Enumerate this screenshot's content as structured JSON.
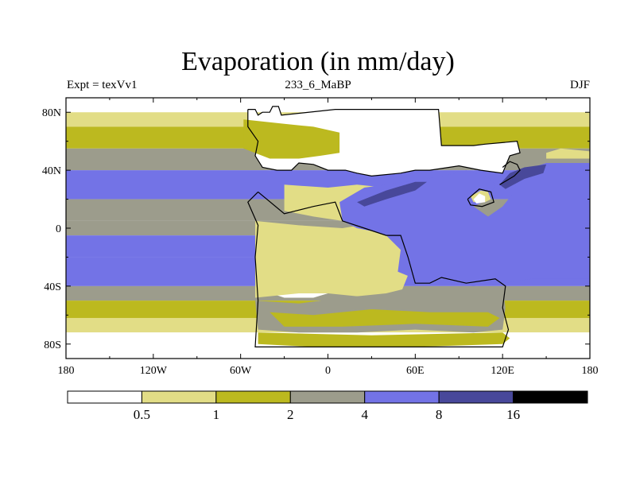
{
  "chart_data": {
    "type": "heatmap",
    "title": "Evaporation (in mm/day)",
    "left_label": "Expt = texVv1",
    "center_label": "233_6_MaBP",
    "right_label": "DJF",
    "x_ticks": [
      {
        "value": -180,
        "label": "180"
      },
      {
        "value": -120,
        "label": "120W"
      },
      {
        "value": -60,
        "label": "60W"
      },
      {
        "value": 0,
        "label": "0"
      },
      {
        "value": 60,
        "label": "60E"
      },
      {
        "value": 120,
        "label": "120E"
      },
      {
        "value": 180,
        "label": "180"
      }
    ],
    "y_ticks": [
      {
        "value": 80,
        "label": "80N"
      },
      {
        "value": 40,
        "label": "40N"
      },
      {
        "value": 0,
        "label": "0"
      },
      {
        "value": -40,
        "label": "40S"
      },
      {
        "value": -80,
        "label": "80S"
      }
    ],
    "xlim": [
      -180,
      180
    ],
    "ylim": [
      -90,
      90
    ],
    "colorbar": {
      "colors": [
        "#ffffff",
        "#e2dd86",
        "#bcb91f",
        "#9c9c8c",
        "#7373e6",
        "#48489a",
        "#000000"
      ],
      "levels": [
        {
          "value": 0.5,
          "label": "0.5"
        },
        {
          "value": 1,
          "label": "1"
        },
        {
          "value": 2,
          "label": "2"
        },
        {
          "value": 4,
          "label": "4"
        },
        {
          "value": 8,
          "label": "8"
        },
        {
          "value": 16,
          "label": "16"
        }
      ]
    },
    "bands": [
      {
        "name": "lat-80-90",
        "lat": [
          80,
          90
        ],
        "level": 0
      },
      {
        "name": "lat-70-80",
        "lat": [
          70,
          80
        ],
        "level": 1
      },
      {
        "name": "lat-55-70",
        "lat": [
          55,
          70
        ],
        "level": 2
      },
      {
        "name": "lat-40-55",
        "lat": [
          40,
          55
        ],
        "level": 3
      },
      {
        "name": "lat-20-40",
        "lat": [
          20,
          40
        ],
        "level": 4
      },
      {
        "name": "lat-5-20",
        "lat": [
          5,
          20
        ],
        "level": 3
      },
      {
        "name": "lat-m5-5",
        "lat": [
          -5,
          5
        ],
        "level": 3
      },
      {
        "name": "lat-m20-m5",
        "lat": [
          -20,
          -5
        ],
        "level": 4
      },
      {
        "name": "lat-m40-m20",
        "lat": [
          -40,
          -20
        ],
        "level": 4
      },
      {
        "name": "lat-m50-m40",
        "lat": [
          -50,
          -40
        ],
        "level": 3
      },
      {
        "name": "lat-m62-m50",
        "lat": [
          -62,
          -50
        ],
        "level": 2
      },
      {
        "name": "lat-m72-m62",
        "lat": [
          -72,
          -62
        ],
        "level": 1
      },
      {
        "name": "lat-m90-m72",
        "lat": [
          -90,
          -72
        ],
        "level": 0
      }
    ],
    "regions": [
      {
        "name": "north-landmass",
        "level": 0,
        "points": [
          [
            -55,
            82
          ],
          [
            -50,
            82
          ],
          [
            -48,
            78
          ],
          [
            -45,
            80
          ],
          [
            -40,
            80
          ],
          [
            -38,
            84
          ],
          [
            -34,
            84
          ],
          [
            -32,
            78
          ],
          [
            5,
            82
          ],
          [
            76,
            82
          ],
          [
            78,
            57
          ],
          [
            90,
            57
          ],
          [
            100,
            57
          ],
          [
            108,
            58
          ],
          [
            130,
            60
          ],
          [
            132,
            52
          ],
          [
            125,
            50
          ],
          [
            120,
            38
          ],
          [
            105,
            40
          ],
          [
            90,
            43
          ],
          [
            70,
            40
          ],
          [
            60,
            40
          ],
          [
            50,
            38
          ],
          [
            30,
            36
          ],
          [
            20,
            38
          ],
          [
            12,
            40
          ],
          [
            0,
            40
          ],
          [
            -10,
            44
          ],
          [
            -20,
            45
          ],
          [
            -25,
            40
          ],
          [
            -35,
            40
          ],
          [
            -45,
            42
          ],
          [
            -50,
            50
          ],
          [
            -48,
            60
          ],
          [
            -55,
            70
          ]
        ]
      },
      {
        "name": "north-band-overlay",
        "level": 2,
        "points": [
          [
            -58,
            75
          ],
          [
            -30,
            72
          ],
          [
            -10,
            70
          ],
          [
            8,
            66
          ],
          [
            8,
            52
          ],
          [
            -5,
            50
          ],
          [
            -20,
            48
          ],
          [
            -40,
            48
          ],
          [
            -58,
            55
          ]
        ]
      },
      {
        "name": "tethys-coast",
        "level": 1,
        "points": [
          [
            -30,
            30
          ],
          [
            0,
            28
          ],
          [
            20,
            30
          ],
          [
            40,
            28
          ],
          [
            50,
            25
          ],
          [
            50,
            10
          ],
          [
            40,
            8
          ],
          [
            30,
            5
          ],
          [
            10,
            5
          ],
          [
            -10,
            8
          ],
          [
            -30,
            12
          ]
        ]
      },
      {
        "name": "africa-south-land",
        "level": 0,
        "points": [
          [
            -48,
            -2
          ],
          [
            -30,
            -10
          ],
          [
            -10,
            -12
          ],
          [
            0,
            -8
          ],
          [
            10,
            -20
          ],
          [
            20,
            -30
          ],
          [
            10,
            -42
          ],
          [
            -10,
            -48
          ],
          [
            -30,
            -48
          ],
          [
            -48,
            -42
          ],
          [
            -50,
            -20
          ]
        ]
      },
      {
        "name": "south-land-pale",
        "level": 1,
        "points": [
          [
            -50,
            5
          ],
          [
            -20,
            2
          ],
          [
            10,
            0
          ],
          [
            40,
            5
          ],
          [
            50,
            -5
          ],
          [
            56,
            -30
          ],
          [
            50,
            -45
          ],
          [
            30,
            -48
          ],
          [
            0,
            -45
          ],
          [
            -20,
            -45
          ],
          [
            -50,
            -48
          ],
          [
            -50,
            -20
          ]
        ]
      },
      {
        "name": "south-gondwana",
        "level": 3,
        "points": [
          [
            -50,
            -50
          ],
          [
            -20,
            -52
          ],
          [
            10,
            -48
          ],
          [
            40,
            -45
          ],
          [
            60,
            -40
          ],
          [
            80,
            -45
          ],
          [
            120,
            -40
          ],
          [
            122,
            -55
          ],
          [
            120,
            -70
          ],
          [
            100,
            -72
          ],
          [
            60,
            -70
          ],
          [
            20,
            -72
          ],
          [
            -20,
            -72
          ],
          [
            -48,
            -70
          ]
        ]
      },
      {
        "name": "south-gondwana-mix",
        "level": 2,
        "points": [
          [
            -40,
            -58
          ],
          [
            -10,
            -60
          ],
          [
            30,
            -56
          ],
          [
            70,
            -58
          ],
          [
            110,
            -58
          ],
          [
            118,
            -62
          ],
          [
            110,
            -68
          ],
          [
            60,
            -66
          ],
          [
            10,
            -68
          ],
          [
            -30,
            -68
          ]
        ]
      },
      {
        "name": "south-antarctic",
        "level": 2,
        "points": [
          [
            -48,
            -72
          ],
          [
            30,
            -74
          ],
          [
            120,
            -72
          ],
          [
            125,
            -76
          ],
          [
            120,
            -80
          ],
          [
            60,
            -82
          ],
          [
            -10,
            -82
          ],
          [
            -48,
            -80
          ]
        ]
      },
      {
        "name": "tethys-ocean",
        "level": 4,
        "points": [
          [
            8,
            18
          ],
          [
            25,
            28
          ],
          [
            40,
            30
          ],
          [
            60,
            33
          ],
          [
            80,
            36
          ],
          [
            95,
            40
          ],
          [
            110,
            35
          ],
          [
            115,
            30
          ],
          [
            110,
            20
          ],
          [
            100,
            15
          ],
          [
            110,
            8
          ],
          [
            120,
            15
          ],
          [
            128,
            25
          ],
          [
            130,
            35
          ],
          [
            135,
            40
          ],
          [
            150,
            45
          ],
          [
            180,
            45
          ],
          [
            180,
            -35
          ],
          [
            140,
            -35
          ],
          [
            120,
            -38
          ],
          [
            100,
            -40
          ],
          [
            80,
            -38
          ],
          [
            60,
            -35
          ],
          [
            48,
            -30
          ],
          [
            50,
            -15
          ],
          [
            40,
            -5
          ],
          [
            30,
            -2
          ],
          [
            20,
            0
          ],
          [
            10,
            5
          ]
        ]
      },
      {
        "name": "tethys-dark-west",
        "level": 5,
        "points": [
          [
            20,
            18
          ],
          [
            40,
            26
          ],
          [
            60,
            32
          ],
          [
            68,
            32
          ],
          [
            60,
            26
          ],
          [
            40,
            20
          ],
          [
            25,
            15
          ]
        ]
      },
      {
        "name": "tethys-dark-east",
        "level": 5,
        "points": [
          [
            118,
            30
          ],
          [
            125,
            38
          ],
          [
            135,
            42
          ],
          [
            150,
            44
          ],
          [
            148,
            38
          ],
          [
            135,
            34
          ],
          [
            122,
            27
          ]
        ]
      },
      {
        "name": "east-island",
        "level": 1,
        "points": [
          [
            98,
            22
          ],
          [
            105,
            26
          ],
          [
            110,
            25
          ],
          [
            112,
            20
          ],
          [
            108,
            18
          ],
          [
            100,
            18
          ]
        ]
      },
      {
        "name": "east-island-white",
        "level": 0,
        "points": [
          [
            100,
            20
          ],
          [
            104,
            24
          ],
          [
            108,
            22
          ],
          [
            108,
            18
          ],
          [
            102,
            17
          ]
        ]
      },
      {
        "name": "east-coast-pale",
        "level": 1,
        "points": [
          [
            150,
            48
          ],
          [
            180,
            48
          ],
          [
            180,
            53
          ],
          [
            160,
            55
          ],
          [
            150,
            52
          ]
        ]
      }
    ],
    "outlines": [
      {
        "name": "north-coastline",
        "points": [
          [
            -55,
            82
          ],
          [
            -50,
            82
          ],
          [
            -48,
            78
          ],
          [
            -45,
            80
          ],
          [
            -40,
            80
          ],
          [
            -38,
            84
          ],
          [
            -34,
            84
          ],
          [
            -32,
            78
          ],
          [
            5,
            82
          ],
          [
            76,
            82
          ],
          [
            78,
            57
          ],
          [
            90,
            57
          ],
          [
            100,
            57
          ],
          [
            108,
            58
          ],
          [
            130,
            60
          ],
          [
            132,
            52
          ],
          [
            125,
            50
          ],
          [
            120,
            38
          ],
          [
            105,
            40
          ],
          [
            90,
            43
          ],
          [
            70,
            40
          ],
          [
            60,
            40
          ],
          [
            50,
            38
          ],
          [
            30,
            36
          ],
          [
            20,
            38
          ],
          [
            12,
            40
          ],
          [
            0,
            40
          ],
          [
            -10,
            44
          ],
          [
            -20,
            45
          ],
          [
            -25,
            40
          ],
          [
            -35,
            40
          ],
          [
            -45,
            42
          ],
          [
            -50,
            50
          ],
          [
            -48,
            60
          ],
          [
            -55,
            70
          ],
          [
            -55,
            82
          ]
        ]
      },
      {
        "name": "south-coastline",
        "points": [
          [
            -48,
            25
          ],
          [
            -55,
            18
          ],
          [
            -48,
            2
          ],
          [
            -50,
            -20
          ],
          [
            -48,
            -50
          ],
          [
            -50,
            -82
          ],
          [
            120,
            -82
          ],
          [
            124,
            -70
          ],
          [
            120,
            -55
          ],
          [
            122,
            -40
          ],
          [
            115,
            -35
          ],
          [
            95,
            -38
          ],
          [
            78,
            -34
          ],
          [
            70,
            -38
          ],
          [
            60,
            -38
          ],
          [
            55,
            -20
          ],
          [
            50,
            -5
          ],
          [
            40,
            -5
          ],
          [
            25,
            0
          ],
          [
            10,
            5
          ],
          [
            5,
            18
          ],
          [
            -10,
            15
          ],
          [
            -30,
            10
          ],
          [
            -48,
            25
          ]
        ]
      },
      {
        "name": "east-island-coast",
        "points": [
          [
            96,
            20
          ],
          [
            104,
            27
          ],
          [
            112,
            25
          ],
          [
            114,
            18
          ],
          [
            106,
            15
          ],
          [
            98,
            16
          ],
          [
            96,
            20
          ]
        ]
      },
      {
        "name": "east-coast",
        "points": [
          [
            118,
            30
          ],
          [
            128,
            36
          ],
          [
            132,
            40
          ],
          [
            130,
            44
          ],
          [
            125,
            46
          ],
          [
            120,
            42
          ]
        ]
      }
    ]
  }
}
